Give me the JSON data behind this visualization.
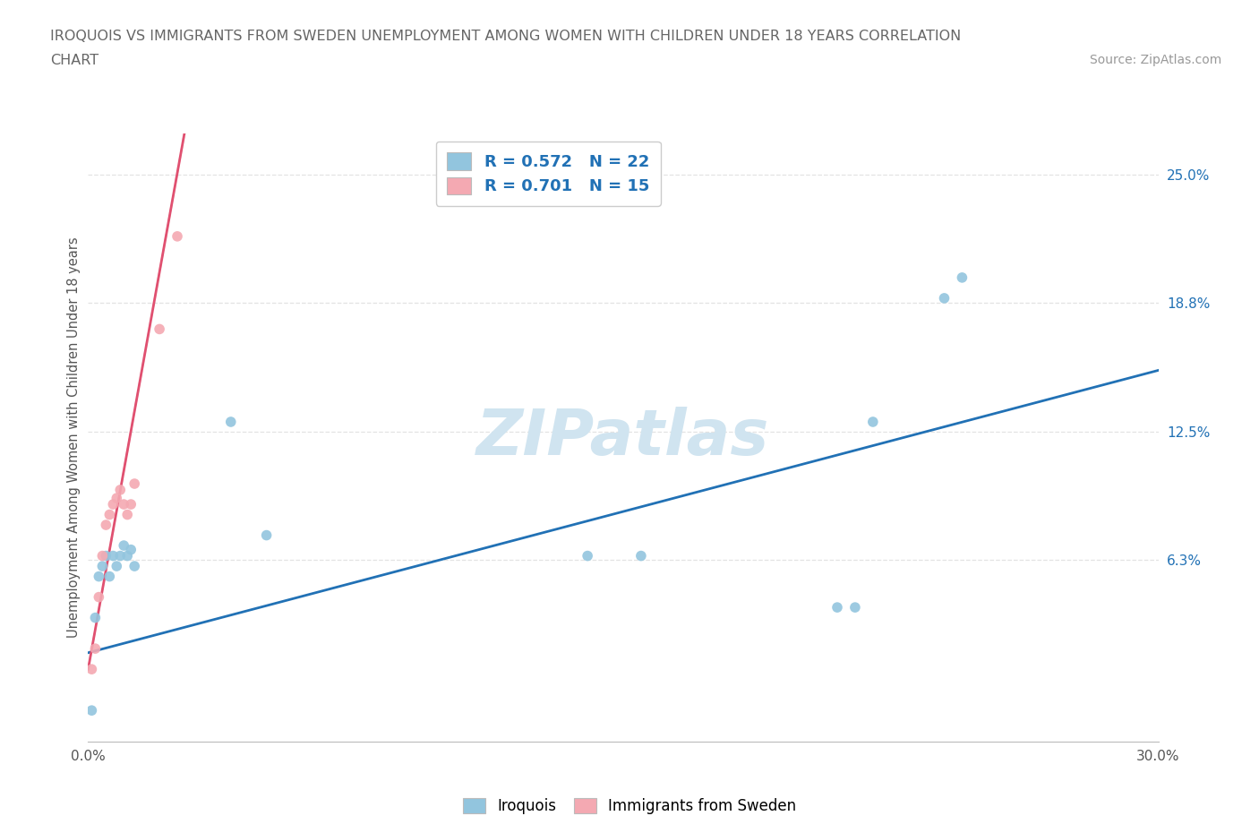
{
  "title_line1": "IROQUOIS VS IMMIGRANTS FROM SWEDEN UNEMPLOYMENT AMONG WOMEN WITH CHILDREN UNDER 18 YEARS CORRELATION",
  "title_line2": "CHART",
  "source": "Source: ZipAtlas.com",
  "ylabel": "Unemployment Among Women with Children Under 18 years",
  "ytick_labels": [
    "25.0%",
    "18.8%",
    "12.5%",
    "6.3%"
  ],
  "ytick_values": [
    0.25,
    0.188,
    0.125,
    0.063
  ],
  "xlim": [
    0.0,
    0.3
  ],
  "ylim": [
    -0.025,
    0.27
  ],
  "iroquois_R": 0.572,
  "iroquois_N": 22,
  "sweden_R": 0.701,
  "sweden_N": 15,
  "iroquois_x": [
    0.001,
    0.002,
    0.003,
    0.004,
    0.005,
    0.006,
    0.007,
    0.008,
    0.009,
    0.01,
    0.011,
    0.012,
    0.013,
    0.04,
    0.05,
    0.14,
    0.155,
    0.21,
    0.215,
    0.22,
    0.24,
    0.245
  ],
  "iroquois_y": [
    -0.01,
    0.035,
    0.055,
    0.06,
    0.065,
    0.055,
    0.065,
    0.06,
    0.065,
    0.07,
    0.065,
    0.068,
    0.06,
    0.13,
    0.075,
    0.065,
    0.065,
    0.04,
    0.04,
    0.13,
    0.19,
    0.2
  ],
  "sweden_x": [
    0.001,
    0.002,
    0.003,
    0.004,
    0.005,
    0.006,
    0.007,
    0.008,
    0.009,
    0.01,
    0.011,
    0.012,
    0.013,
    0.02,
    0.025
  ],
  "sweden_y": [
    0.01,
    0.02,
    0.045,
    0.065,
    0.08,
    0.085,
    0.09,
    0.093,
    0.097,
    0.09,
    0.085,
    0.09,
    0.1,
    0.175,
    0.22
  ],
  "blue_color": "#92C5DE",
  "pink_color": "#F4A9B2",
  "blue_line_color": "#2171B5",
  "pink_line_color": "#E8798A",
  "pink_line_solid_color": "#E05070",
  "legend_R_color": "#2171B5",
  "title_color": "#666666",
  "source_color": "#999999",
  "ytick_color": "#2171B5",
  "watermark_color": "#D0E4F0",
  "dot_size": 70,
  "grid_color": "#DDDDDD",
  "background_color": "#FFFFFF",
  "blue_line_x0": 0.0,
  "blue_line_y0": 0.018,
  "blue_line_x1": 0.3,
  "blue_line_y1": 0.155,
  "pink_line_x0": 0.0,
  "pink_line_y0": 0.01,
  "pink_line_x1": 0.027,
  "pink_line_y1": 0.27
}
